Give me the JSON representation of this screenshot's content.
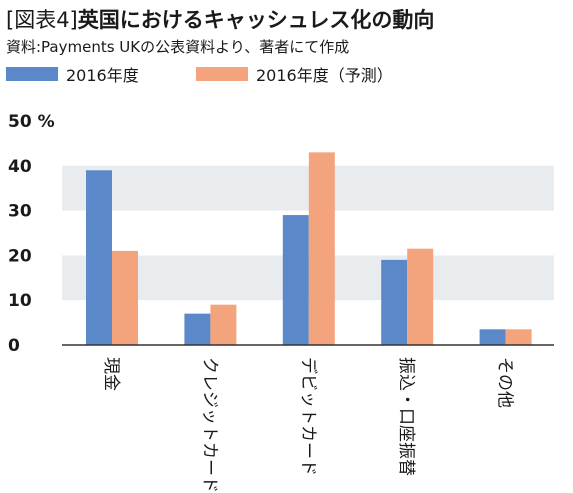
{
  "header": {
    "figure_label": "[図表4]",
    "title": "英国におけるキャッシュレス化の動向",
    "source": "資料:Payments UKの公表資料より、著者にて作成"
  },
  "colors": {
    "series_0": "#5b88c8",
    "series_1": "#f3a47d",
    "band": "#e9ecef",
    "axis": "#333333"
  },
  "chart_data": {
    "type": "bar",
    "categories": [
      "現金",
      "クレジットカード",
      "デビットカード",
      "振込・口座振替",
      "その他"
    ],
    "series": [
      {
        "name": "2016年度",
        "values": [
          39,
          7,
          29,
          19,
          3.5
        ]
      },
      {
        "name": "2016年度（予測）",
        "values": [
          21,
          9,
          43,
          21.5,
          3.5
        ]
      }
    ],
    "ylim": [
      0,
      50
    ],
    "yticks": [
      "0",
      "10",
      "20",
      "30",
      "40",
      "50 %"
    ],
    "grid": "alternating horizontal bands",
    "legend": "top-left"
  }
}
